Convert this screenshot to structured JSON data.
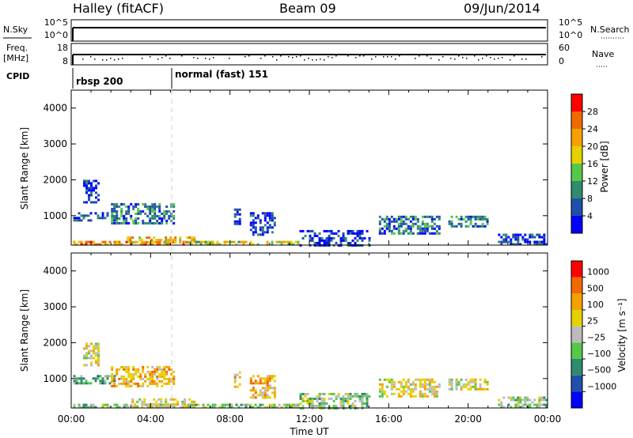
{
  "header": {
    "station": "Halley (fitACF)",
    "beam": "Beam 09",
    "date": "09/Jun/2014"
  },
  "top_panels": {
    "nsky_label": "N.Sky",
    "nsearch_label": "N.Search",
    "nsky_ticks": [
      "10^5",
      "10^0"
    ],
    "nsearch_ticks": [
      "10^5",
      "10^0"
    ],
    "freq_label": "Freq.",
    "freq_unit": "[MHz]",
    "freq_ticks": [
      "18",
      "8"
    ],
    "nave_label": "Nave",
    "nave_ticks": [
      "60",
      "0"
    ],
    "cpid_label": "CPID",
    "cpid_segments": [
      {
        "label": "rbsp 200",
        "start_hour": 0
      },
      {
        "label": "normal (fast) 151",
        "start_hour": 5.1
      }
    ]
  },
  "chart_data": [
    {
      "type": "heatmap",
      "name": "power",
      "ylabel": "Slant Range [km]",
      "xlabel": "",
      "x_ticks": [
        "00:00",
        "04:00",
        "08:00",
        "12:00",
        "16:00",
        "20:00",
        "00:00"
      ],
      "xlim_hours": [
        0,
        24
      ],
      "y_ticks": [
        1000,
        2000,
        3000,
        4000
      ],
      "ylim": [
        180,
        4500
      ],
      "colorbar": {
        "label": "Power [dB]",
        "ticks": [
          "4",
          "8",
          "12",
          "16",
          "20",
          "24",
          "28"
        ],
        "range": [
          0,
          30
        ],
        "colors": [
          "#0000ff",
          "#1f4fa8",
          "#2f8a6e",
          "#55c84a",
          "#e5d000",
          "#f5a000",
          "#f06a00",
          "#ff0000"
        ]
      },
      "echo_regions": [
        {
          "t": [
            0.1,
            6.0
          ],
          "r": [
            200,
            300
          ],
          "level": 6
        },
        {
          "t": [
            2.8,
            6.2
          ],
          "r": [
            250,
            420
          ],
          "level": 5
        },
        {
          "t": [
            6.0,
            11.5
          ],
          "r": [
            200,
            300
          ],
          "level": 4
        },
        {
          "t": [
            0.1,
            2.2
          ],
          "r": [
            850,
            1100
          ],
          "level": 1
        },
        {
          "t": [
            0.6,
            1.4
          ],
          "r": [
            1400,
            2000
          ],
          "level": 1
        },
        {
          "t": [
            2.0,
            5.2
          ],
          "r": [
            800,
            1350
          ],
          "level": 2
        },
        {
          "t": [
            8.2,
            8.5
          ],
          "r": [
            800,
            1200
          ],
          "level": 1
        },
        {
          "t": [
            9.0,
            10.2
          ],
          "r": [
            500,
            1100
          ],
          "level": 1
        },
        {
          "t": [
            11.5,
            15.0
          ],
          "r": [
            200,
            600
          ],
          "level": 1
        },
        {
          "t": [
            15.5,
            18.5
          ],
          "r": [
            500,
            1000
          ],
          "level": 2
        },
        {
          "t": [
            19.0,
            21.0
          ],
          "r": [
            700,
            1000
          ],
          "level": 2
        },
        {
          "t": [
            21.5,
            24.0
          ],
          "r": [
            200,
            500
          ],
          "level": 1
        }
      ]
    },
    {
      "type": "heatmap",
      "name": "velocity",
      "ylabel": "Slant Range [km]",
      "xlabel": "Time UT",
      "x_ticks": [
        "00:00",
        "04:00",
        "08:00",
        "12:00",
        "16:00",
        "20:00",
        "00:00"
      ],
      "xlim_hours": [
        0,
        24
      ],
      "y_ticks": [
        1000,
        2000,
        3000,
        4000
      ],
      "ylim": [
        180,
        4500
      ],
      "colorbar": {
        "label": "Velocity [m s⁻¹]",
        "ticks": [
          "1000",
          "500",
          "100",
          "25",
          "−25",
          "−100",
          "−500",
          "−1000"
        ],
        "colors": [
          "#0000ff",
          "#1f4fa8",
          "#2f8a6e",
          "#55c84a",
          "#bbbbbb",
          "#e5d000",
          "#f5a000",
          "#f06a00",
          "#ff0000"
        ]
      },
      "echo_regions": [
        {
          "t": [
            0.1,
            6.0
          ],
          "r": [
            200,
            300
          ],
          "level": 4
        },
        {
          "t": [
            2.8,
            6.2
          ],
          "r": [
            250,
            450
          ],
          "level": 5
        },
        {
          "t": [
            6.0,
            11.5
          ],
          "r": [
            200,
            300
          ],
          "level": 4
        },
        {
          "t": [
            0.1,
            2.2
          ],
          "r": [
            850,
            1100
          ],
          "level": 3
        },
        {
          "t": [
            0.6,
            1.4
          ],
          "r": [
            1400,
            2000
          ],
          "level": 5
        },
        {
          "t": [
            2.0,
            5.2
          ],
          "r": [
            800,
            1350
          ],
          "level": 6
        },
        {
          "t": [
            8.2,
            8.5
          ],
          "r": [
            800,
            1200
          ],
          "level": 6
        },
        {
          "t": [
            9.0,
            10.2
          ],
          "r": [
            500,
            1100
          ],
          "level": 6
        },
        {
          "t": [
            11.5,
            15.0
          ],
          "r": [
            200,
            600
          ],
          "level": 4
        },
        {
          "t": [
            15.5,
            18.5
          ],
          "r": [
            500,
            1000
          ],
          "level": 5
        },
        {
          "t": [
            19.0,
            21.0
          ],
          "r": [
            700,
            1000
          ],
          "level": 5
        },
        {
          "t": [
            21.5,
            24.0
          ],
          "r": [
            200,
            500
          ],
          "level": 4
        }
      ]
    }
  ]
}
